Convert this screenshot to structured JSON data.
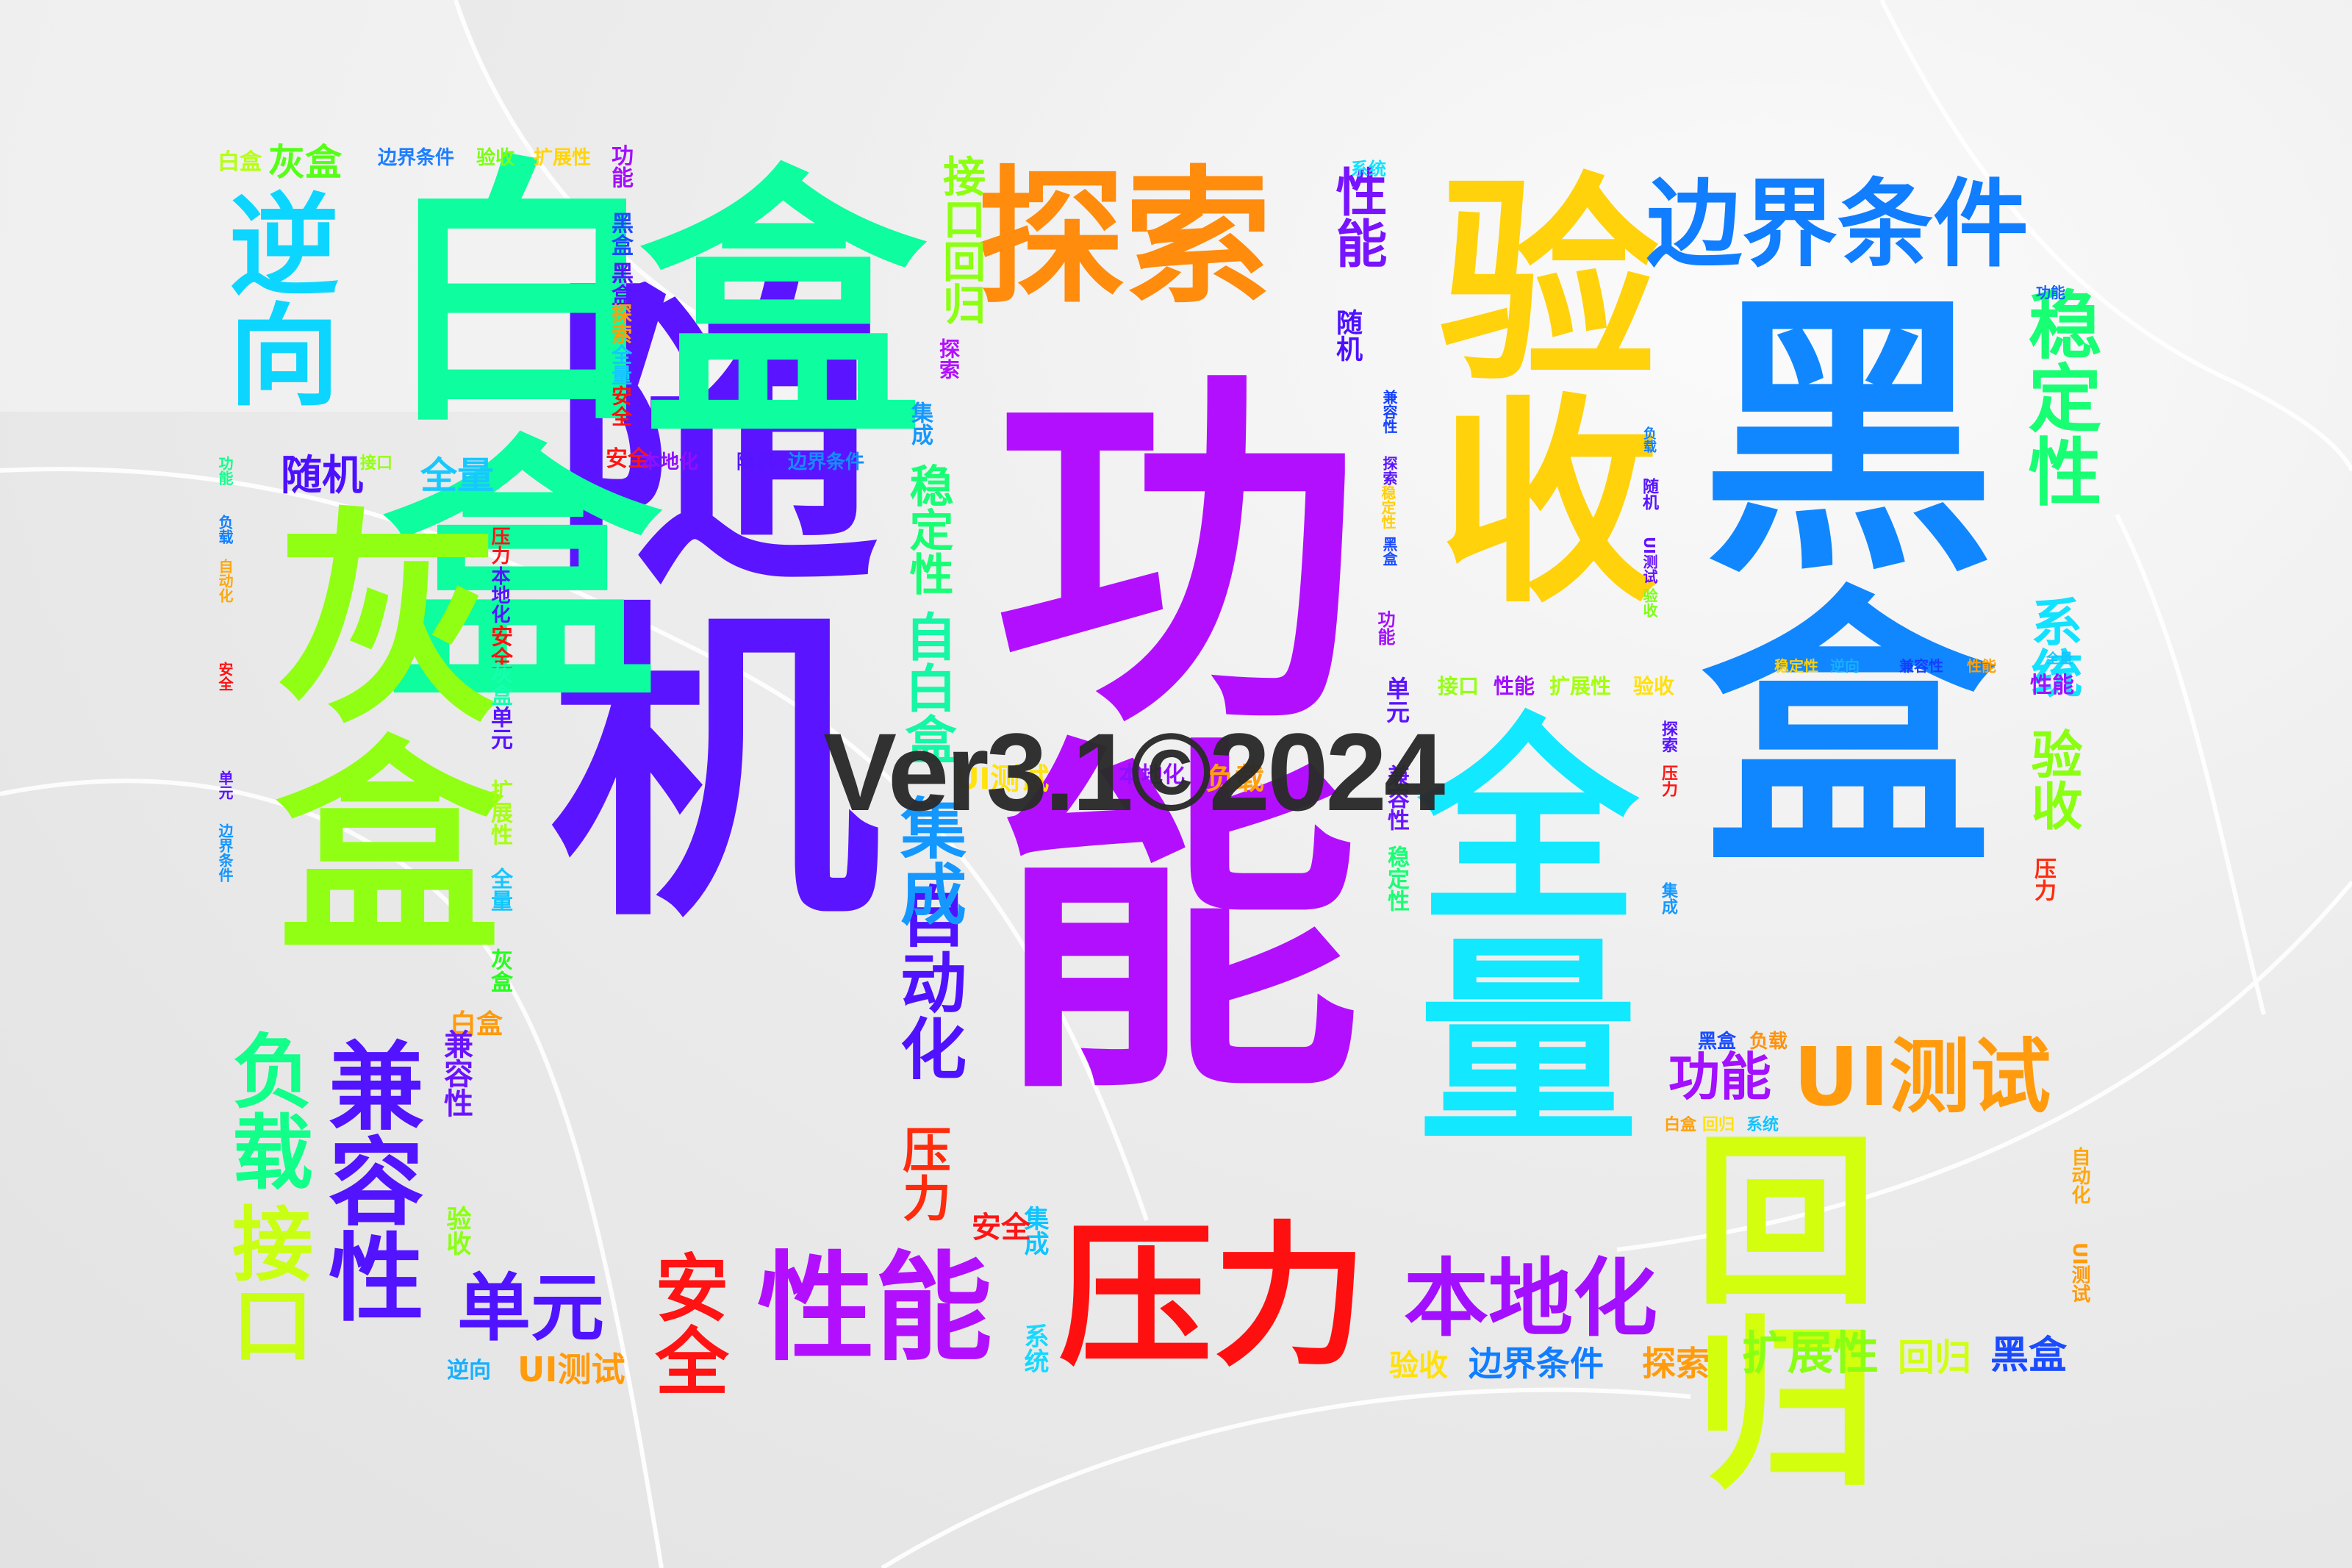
{
  "watermark": "Ver3.1©2024",
  "words": [
    {
      "text": "功能",
      "color": "#b30fff",
      "v": true
    },
    {
      "text": "随机",
      "color": "#5b14ff",
      "v": true
    },
    {
      "text": "黑盒",
      "color": "#1187ff",
      "v": true
    },
    {
      "text": "全量",
      "color": "#12e8ff",
      "v": true
    },
    {
      "text": "白盒",
      "color": "#0dfd9f",
      "v": true
    },
    {
      "text": "盒",
      "color": "#0dfd9f",
      "v": false
    },
    {
      "text": "验收",
      "color": "#ffd20c",
      "v": true
    },
    {
      "text": "灰盒",
      "color": "#90ff14",
      "v": true
    },
    {
      "text": "探索",
      "color": "#ff8c0d",
      "v": false
    },
    {
      "text": "压力",
      "color": "#ff1010",
      "v": false
    },
    {
      "text": "回归",
      "color": "#d3ff0f",
      "v": true
    },
    {
      "text": "边界条件",
      "color": "#117dff",
      "v": false
    },
    {
      "text": "性能",
      "color": "#b30fff",
      "v": false
    },
    {
      "text": "逆向",
      "color": "#0cd6ff",
      "v": true
    },
    {
      "text": "兼容性",
      "color": "#5213ff",
      "v": true
    },
    {
      "text": "负载",
      "color": "#12ff8a",
      "v": true
    },
    {
      "text": "接口",
      "color": "#c9ff12",
      "v": true
    },
    {
      "text": "UI测试",
      "color": "#ff9b0d",
      "v": false
    },
    {
      "text": "本地化",
      "color": "#a30fff",
      "v": false
    },
    {
      "text": "稳定性",
      "color": "#18ff74",
      "v": true
    },
    {
      "text": "单元",
      "color": "#5013ff",
      "v": false
    },
    {
      "text": "自动化",
      "color": "#5011ff",
      "v": true
    },
    {
      "text": "集成",
      "color": "#1498ff",
      "v": true
    },
    {
      "text": "安全",
      "color": "#ff1313",
      "v": true
    },
    {
      "text": "功能",
      "color": "#a30fff",
      "v": false
    },
    {
      "text": "扩展性",
      "color": "#8aff14",
      "v": false
    },
    {
      "text": "系统",
      "color": "#12e2ff",
      "v": true
    },
    {
      "text": "验收",
      "color": "#8aff12",
      "v": true
    },
    {
      "text": "压力",
      "color": "#ff2b0d",
      "v": true
    },
    {
      "text": "自白盒",
      "color": "#16f7a5",
      "v": true
    },
    {
      "text": "性能",
      "color": "#7713ff",
      "v": true
    },
    {
      "text": "接口回归",
      "color": "#8cff12",
      "v": true
    },
    {
      "text": "随机",
      "color": "#4d10ff",
      "v": false
    },
    {
      "text": "全量",
      "color": "#17c8ff",
      "v": false
    },
    {
      "text": "灰盒",
      "color": "#55ff16",
      "v": false
    },
    {
      "text": "白盒",
      "color": "#b4ff14",
      "v": false
    },
    {
      "text": "边界条件",
      "color": "#1f7eff",
      "v": false
    },
    {
      "text": "验收",
      "color": "#7bff14",
      "v": false
    },
    {
      "text": "扩展性",
      "color": "#ffd40c",
      "v": false
    },
    {
      "text": "安全",
      "color": "#ff1414",
      "v": false
    },
    {
      "text": "本地化",
      "color": "#8f0fff",
      "v": false
    },
    {
      "text": "随机",
      "color": "#5614ff",
      "v": false
    },
    {
      "text": "边界条件",
      "color": "#148dff",
      "v": false
    },
    {
      "text": "集成",
      "color": "#0fc4ff",
      "v": true
    },
    {
      "text": "系统",
      "color": "#15d8ff",
      "v": true
    },
    {
      "text": "接口",
      "color": "#94ff14",
      "v": false
    },
    {
      "text": "性能",
      "color": "#a110ff",
      "v": false
    },
    {
      "text": "扩展性",
      "color": "#a5ff12",
      "v": false
    },
    {
      "text": "验收",
      "color": "#ffe00c",
      "v": false
    },
    {
      "text": "探索",
      "color": "#ff9c0d",
      "v": false
    },
    {
      "text": "回归",
      "color": "#d0ff14",
      "v": false
    },
    {
      "text": "黑盒",
      "color": "#1a4bff",
      "v": false
    },
    {
      "text": "功能",
      "color": "#a30fff",
      "v": false
    },
    {
      "text": "负载",
      "color": "#ff920d",
      "v": false
    },
    {
      "text": "白盒",
      "color": "#ffa00c",
      "v": false
    },
    {
      "text": "回归",
      "color": "#ffe10c",
      "v": false
    },
    {
      "text": "系统",
      "color": "#14c3ff",
      "v": false
    },
    {
      "text": "UI测试",
      "color": "#6513ff",
      "v": true
    },
    {
      "text": "自动化",
      "color": "#ffc30c",
      "v": true
    },
    {
      "text": "灰盒",
      "color": "#23ff1a",
      "v": false
    },
    {
      "text": "单元",
      "color": "#5a13ff",
      "v": false
    },
    {
      "text": "逆向",
      "color": "#17b0ff",
      "v": false
    },
    {
      "text": "兼容性",
      "color": "#1340ff",
      "v": false
    },
    {
      "text": "稳定性",
      "color": "#ffcf0c",
      "v": false
    },
    {
      "text": "负载",
      "color": "#1080ff",
      "v": false
    },
    {
      "text": "全量",
      "color": "#14c6ff",
      "v": false
    },
    {
      "text": "性能",
      "color": "#ffa00c",
      "v": false
    },
    {
      "text": "系统",
      "color": "#0ee3ff",
      "v": false
    },
    {
      "text": "白盒",
      "color": "#ff9a0c",
      "v": false
    },
    {
      "text": "灰盒",
      "color": "#16ffb0",
      "v": false
    },
    {
      "text": "功能",
      "color": "#1263ff",
      "v": false
    },
    {
      "text": "压力",
      "color": "#5214ff",
      "v": false
    },
    {
      "text": "本地化",
      "color": "#ff1414",
      "v": false
    },
    {
      "text": "安全",
      "color": "#ff1010",
      "v": false
    },
    {
      "text": "自动化",
      "color": "#ffa70c",
      "v": false
    },
    {
      "text": "边界条件",
      "color": "#1496ff",
      "v": false
    },
    {
      "text": "验收",
      "color": "#5a14ff",
      "v": false
    },
    {
      "text": "扩展性",
      "color": "#ffb40c",
      "v": false
    },
    {
      "text": "UI测试",
      "color": "#ffe30c",
      "v": true
    },
    {
      "text": "稳定性",
      "color": "#8c12ff",
      "v": true
    },
    {
      "text": "逆向",
      "color": "#d8ff12",
      "v": true
    },
    {
      "text": "兼容性",
      "color": "#6a13ff",
      "v": true
    },
    {
      "text": "黑盒",
      "color": "#3114ff",
      "v": true
    },
    {
      "text": "探索",
      "color": "#ff9a0c",
      "v": true
    },
    {
      "text": "随机",
      "color": "#b70fff",
      "v": true
    },
    {
      "text": "负载",
      "color": "#2a14ff",
      "v": true
    },
    {
      "text": "功能",
      "color": "#ff8c0c",
      "v": true
    },
    {
      "text": "单元",
      "color": "#5a14ff",
      "v": true
    },
    {
      "text": "逆向",
      "color": "#ff8c0c",
      "v": true
    },
    {
      "text": "集成",
      "color": "#ff1b13",
      "v": true
    },
    {
      "text": "探索",
      "color": "#ff2d10",
      "v": true
    },
    {
      "text": "本地化",
      "color": "#13f4ff",
      "v": true
    },
    {
      "text": "负载",
      "color": "#20ff18",
      "v": true
    },
    {
      "text": "稳定性",
      "color": "#ffaf0c",
      "v": true
    },
    {
      "text": "全量",
      "color": "#3fff14",
      "v": true
    },
    {
      "text": "验收",
      "color": "#b6ff14",
      "v": true
    },
    {
      "text": "功能",
      "color": "#ff8d0c",
      "v": true
    }
  ]
}
